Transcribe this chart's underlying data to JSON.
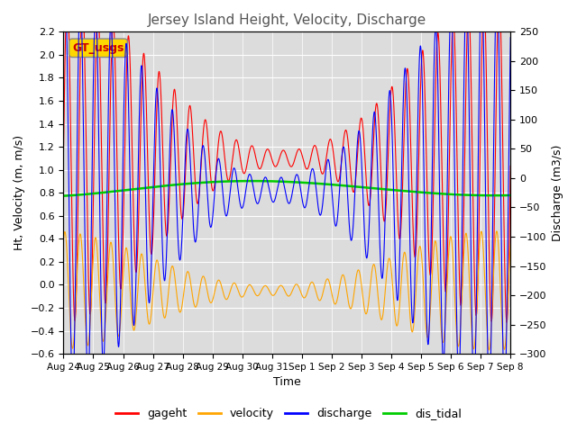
{
  "title": "Jersey Island Height, Velocity, Discharge",
  "xlabel": "Time",
  "ylabel_left": "Ht, Velocity (m, m/s)",
  "ylabel_right": "Discharge (m3/s)",
  "ylim_left": [
    -0.6,
    2.2
  ],
  "ylim_right": [
    -300,
    250
  ],
  "yticks_left": [
    -0.6,
    -0.4,
    -0.2,
    0.0,
    0.2,
    0.4,
    0.6,
    0.8,
    1.0,
    1.2,
    1.4,
    1.6,
    1.8,
    2.0,
    2.2
  ],
  "yticks_right": [
    -300,
    -250,
    -200,
    -150,
    -100,
    -50,
    0,
    50,
    100,
    150,
    200,
    250
  ],
  "xtick_labels": [
    "Aug 24",
    "Aug 25",
    "Aug 26",
    "Aug 27",
    "Aug 28",
    "Aug 29",
    "Aug 30",
    "Aug 31",
    "Sep 1",
    "Sep 2",
    "Sep 3",
    "Sep 4",
    "Sep 5",
    "Sep 6",
    "Sep 7",
    "Sep 8"
  ],
  "colors": {
    "gageht": "#ff0000",
    "velocity": "#ffa500",
    "discharge": "#0000ff",
    "dis_tidal": "#00cc00"
  },
  "legend_label": "GT_usgs",
  "legend_box_color": "#ffd700",
  "legend_text_color": "#cc0000",
  "background_color": "#dcdcdc",
  "grid_color": "#ffffff",
  "title_color": "#555555"
}
